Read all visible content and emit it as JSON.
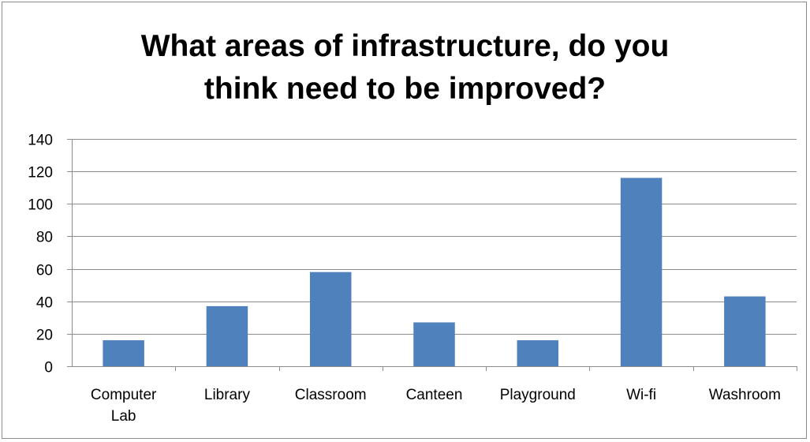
{
  "chart_data": {
    "type": "bar",
    "title_lines": [
      "What areas of infrastructure, do you",
      "think need to be improved?"
    ],
    "categories": [
      [
        "Computer",
        "Lab"
      ],
      [
        "Library"
      ],
      [
        "Classroom"
      ],
      [
        "Canteen"
      ],
      [
        "Playground"
      ],
      [
        "Wi-fi"
      ],
      [
        "Washroom"
      ]
    ],
    "values": [
      16,
      37,
      58,
      27,
      16,
      116,
      43
    ],
    "ylim": [
      0,
      140
    ],
    "yticks": [
      0,
      20,
      40,
      60,
      80,
      100,
      120,
      140
    ],
    "grid": true,
    "legend": false,
    "bar_color": "#4f81bd",
    "grid_color": "#8c8c8c"
  }
}
